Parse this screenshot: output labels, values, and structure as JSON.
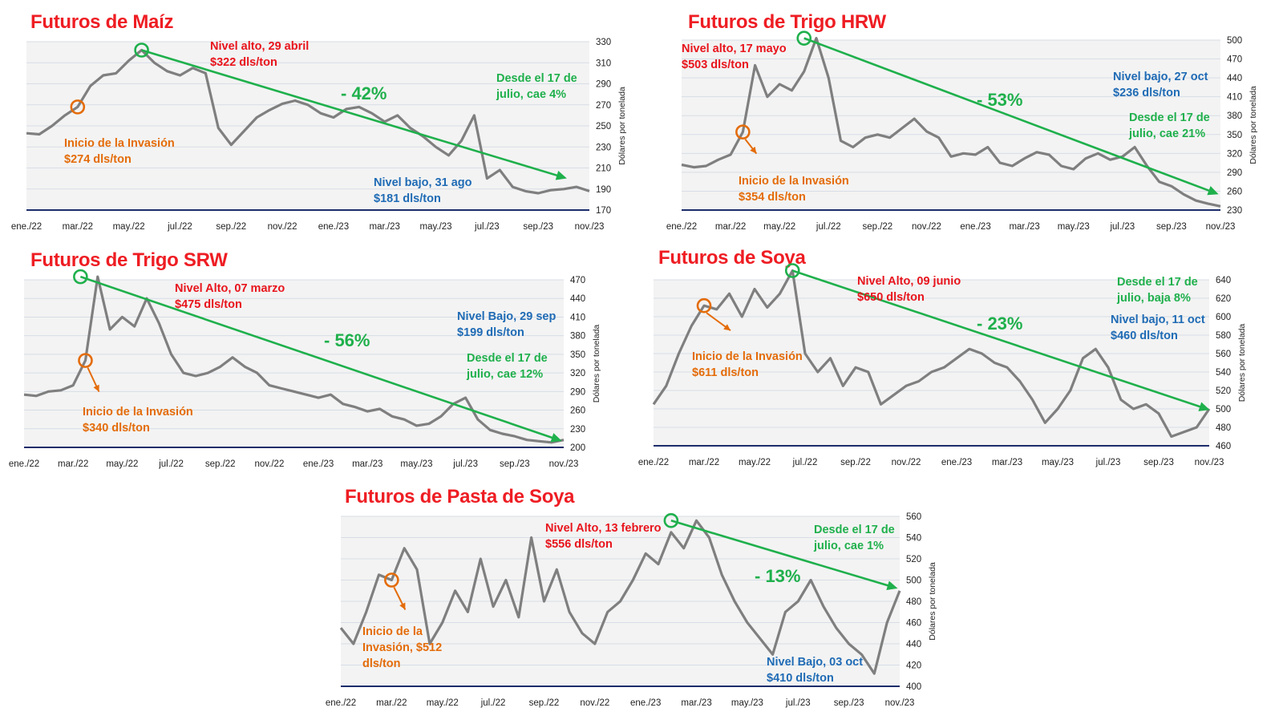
{
  "chart_data": [
    {
      "id": "maiz",
      "type": "line",
      "title": "Futuros de Maíz",
      "ylabel": "Dólares por tonelada",
      "ylim": [
        170,
        330
      ],
      "yticks": [
        170,
        190,
        210,
        230,
        250,
        270,
        290,
        310,
        330
      ],
      "xticks": [
        "ene./22",
        "mar./22",
        "may./22",
        "jul./22",
        "sep./22",
        "nov./22",
        "ene./23",
        "mar./23",
        "may./23",
        "jul./23",
        "sep./23",
        "nov./23"
      ],
      "grid": true,
      "series": [
        {
          "x": [
            0,
            0.5,
            1,
            1.5,
            2,
            2.5,
            3,
            3.5,
            4,
            4.5,
            5,
            5.5,
            6,
            6.5,
            7,
            7.5,
            8,
            8.5,
            9,
            9.5,
            10,
            10.5,
            11,
            11.5,
            12,
            12.5,
            13,
            13.5,
            14,
            14.5,
            15,
            15.5,
            16,
            16.5,
            17,
            17.5,
            18,
            18.5,
            19,
            19.5,
            20,
            20.5,
            21,
            21.5,
            22
          ],
          "values": [
            243,
            242,
            250,
            260,
            268,
            288,
            298,
            300,
            312,
            322,
            310,
            302,
            298,
            305,
            300,
            248,
            232,
            245,
            258,
            265,
            271,
            274,
            270,
            262,
            258,
            266,
            268,
            262,
            254,
            260,
            248,
            240,
            230,
            222,
            236,
            260,
            200,
            208,
            192,
            188,
            186,
            189,
            190,
            192,
            188
          ]
        }
      ],
      "trend": [
        [
          4.5,
          322
        ],
        [
          21,
          201
        ]
      ],
      "annotations": [
        {
          "text": "Nivel alto, 29 abril",
          "text2": "$322 dls/ton",
          "color": "red"
        },
        {
          "text": "Inicio de la Invasión",
          "text2": "$274 dls/ton",
          "color": "orange"
        },
        {
          "text": "Nivel bajo, 31 ago",
          "text2": "$181 dls/ton",
          "color": "blue"
        },
        {
          "text": "Desde el 17 de",
          "text2": "julio, cae 4%",
          "color": "green"
        },
        {
          "text": "- 42%",
          "color": "green"
        }
      ]
    },
    {
      "id": "hrw",
      "type": "line",
      "title": "Futuros de Trigo HRW",
      "ylabel": "Dólares por tonelada",
      "ylim": [
        230,
        500
      ],
      "yticks": [
        230,
        260,
        290,
        320,
        350,
        380,
        410,
        440,
        470,
        500
      ],
      "xticks": [
        "ene./22",
        "mar./22",
        "may./22",
        "jul./22",
        "sep./22",
        "nov./22",
        "ene./23",
        "mar./23",
        "may./23",
        "jul./23",
        "sep./23",
        "nov./23"
      ],
      "grid": true,
      "series": [
        {
          "x": [
            0,
            0.5,
            1,
            1.5,
            2,
            2.5,
            3,
            3.5,
            4,
            4.5,
            5,
            5.5,
            6,
            6.5,
            7,
            7.5,
            8,
            8.5,
            9,
            9.5,
            10,
            10.5,
            11,
            11.5,
            12,
            12.5,
            13,
            13.5,
            14,
            14.5,
            15,
            15.5,
            16,
            16.5,
            17,
            17.5,
            18,
            18.5,
            19,
            19.5,
            20,
            20.5,
            21,
            21.5,
            22
          ],
          "values": [
            302,
            298,
            300,
            310,
            318,
            354,
            460,
            410,
            430,
            420,
            450,
            503,
            440,
            340,
            330,
            345,
            350,
            345,
            360,
            375,
            355,
            345,
            315,
            320,
            318,
            330,
            305,
            300,
            312,
            322,
            318,
            300,
            295,
            312,
            320,
            310,
            315,
            330,
            300,
            275,
            268,
            255,
            245,
            240,
            236
          ]
        }
      ],
      "trend": [
        [
          5,
          503
        ],
        [
          21.8,
          257
        ]
      ],
      "annotations": [
        {
          "text": "Nivel alto, 17 mayo",
          "text2": "$503 dls/ton",
          "color": "red"
        },
        {
          "text": "Inicio de la Invasión",
          "text2": "$354 dls/ton",
          "color": "orange"
        },
        {
          "text": "Nivel bajo, 27 oct",
          "text2": "$236 dls/ton",
          "color": "blue"
        },
        {
          "text": "Desde el 17 de",
          "text2": "julio, cae 21%",
          "color": "green"
        },
        {
          "text": "- 53%",
          "color": "green"
        }
      ]
    },
    {
      "id": "srw",
      "type": "line",
      "title": "Futuros de Trigo SRW",
      "ylabel": "Dólares por tonelada",
      "ylim": [
        200,
        470
      ],
      "yticks": [
        200,
        230,
        260,
        290,
        320,
        350,
        380,
        410,
        440,
        470
      ],
      "xticks": [
        "ene./22",
        "mar./22",
        "may./22",
        "jul./22",
        "sep./22",
        "nov./22",
        "ene./23",
        "mar./23",
        "may./23",
        "jul./23",
        "sep./23",
        "nov./23"
      ],
      "grid": true,
      "series": [
        {
          "x": [
            0,
            0.5,
            1,
            1.5,
            2,
            2.5,
            3,
            3.5,
            4,
            4.5,
            5,
            5.5,
            6,
            6.5,
            7,
            7.5,
            8,
            8.5,
            9,
            9.5,
            10,
            10.5,
            11,
            11.5,
            12,
            12.5,
            13,
            13.5,
            14,
            14.5,
            15,
            15.5,
            16,
            16.5,
            17,
            17.5,
            18,
            18.5,
            19,
            19.5,
            20,
            20.5,
            21,
            21.5,
            22
          ],
          "values": [
            285,
            283,
            290,
            292,
            300,
            340,
            475,
            390,
            410,
            395,
            440,
            400,
            350,
            320,
            315,
            320,
            330,
            345,
            330,
            320,
            300,
            295,
            290,
            285,
            280,
            285,
            270,
            265,
            258,
            262,
            250,
            245,
            235,
            238,
            250,
            270,
            280,
            245,
            228,
            222,
            218,
            212,
            210,
            208,
            212
          ]
        }
      ],
      "trend": [
        [
          2.3,
          475
        ],
        [
          21.8,
          212
        ]
      ],
      "annotations": [
        {
          "text": "Nivel Alto, 07 marzo",
          "text2": "$475 dls/ton",
          "color": "red"
        },
        {
          "text": "Inicio de la Invasión",
          "text2": "$340 dls/ton",
          "color": "orange"
        },
        {
          "text": "Nivel Bajo, 29 sep",
          "text2": "$199 dls/ton",
          "color": "blue"
        },
        {
          "text": "Desde el 17 de",
          "text2": "julio, cae 12%",
          "color": "green"
        },
        {
          "text": "- 56%",
          "color": "green"
        }
      ]
    },
    {
      "id": "soya",
      "type": "line",
      "title": "Futuros de Soya",
      "ylabel": "Dólares por tonelada",
      "ylim": [
        460,
        640
      ],
      "yticks": [
        460,
        480,
        500,
        520,
        540,
        560,
        580,
        600,
        620,
        640
      ],
      "xticks": [
        "ene./22",
        "mar./22",
        "may./22",
        "jul./22",
        "sep./22",
        "nov./22",
        "ene./23",
        "mar./23",
        "may./23",
        "jul./23",
        "sep./23",
        "nov./23"
      ],
      "grid": true,
      "series": [
        {
          "x": [
            0,
            0.5,
            1,
            1.5,
            2,
            2.5,
            3,
            3.5,
            4,
            4.5,
            5,
            5.5,
            6,
            6.5,
            7,
            7.5,
            8,
            8.5,
            9,
            9.5,
            10,
            10.5,
            11,
            11.5,
            12,
            12.5,
            13,
            13.5,
            14,
            14.5,
            15,
            15.5,
            16,
            16.5,
            17,
            17.5,
            18,
            18.5,
            19,
            19.5,
            20,
            20.5,
            21,
            21.5,
            22
          ],
          "values": [
            505,
            525,
            560,
            590,
            612,
            608,
            625,
            600,
            630,
            610,
            625,
            650,
            560,
            540,
            555,
            525,
            545,
            540,
            505,
            515,
            525,
            530,
            540,
            545,
            555,
            565,
            560,
            550,
            545,
            530,
            510,
            485,
            500,
            520,
            555,
            565,
            545,
            510,
            500,
            505,
            495,
            470,
            475,
            480,
            500
          ]
        }
      ],
      "trend": [
        [
          5.5,
          650
        ],
        [
          21.9,
          500
        ]
      ],
      "annotations": [
        {
          "text": "Nivel Alto, 09 junio",
          "text2": "$650 dls/ton",
          "color": "red"
        },
        {
          "text": "Inicio de la Invasión",
          "text2": "$611 dls/ton",
          "color": "orange"
        },
        {
          "text": "Nivel bajo, 11 oct",
          "text2": "$460 dls/ton",
          "color": "blue"
        },
        {
          "text": "Desde el 17 de",
          "text2": "julio, baja 8%",
          "color": "green"
        },
        {
          "text": "- 23%",
          "color": "green"
        }
      ]
    },
    {
      "id": "pasta",
      "type": "line",
      "title": "Futuros de Pasta de Soya",
      "ylabel": "Dólares por tonelada",
      "ylim": [
        400,
        560
      ],
      "yticks": [
        400,
        420,
        440,
        460,
        480,
        500,
        520,
        540,
        560
      ],
      "xticks": [
        "ene./22",
        "mar./22",
        "may./22",
        "jul./22",
        "sep./22",
        "nov./22",
        "ene./23",
        "mar./23",
        "may./23",
        "jul./23",
        "sep./23",
        "nov./23"
      ],
      "grid": true,
      "series": [
        {
          "x": [
            0,
            0.5,
            1,
            1.5,
            2,
            2.5,
            3,
            3.5,
            4,
            4.5,
            5,
            5.5,
            6,
            6.5,
            7,
            7.5,
            8,
            8.5,
            9,
            9.5,
            10,
            10.5,
            11,
            11.5,
            12,
            12.5,
            13,
            13.5,
            14,
            14.5,
            15,
            15.5,
            16,
            16.5,
            17,
            17.5,
            18,
            18.5,
            19,
            19.5,
            20,
            20.5,
            21,
            21.5,
            22
          ],
          "values": [
            455,
            440,
            470,
            505,
            500,
            530,
            510,
            440,
            460,
            490,
            470,
            520,
            475,
            500,
            465,
            540,
            480,
            510,
            470,
            450,
            440,
            470,
            480,
            500,
            525,
            515,
            545,
            530,
            556,
            540,
            505,
            480,
            460,
            445,
            430,
            470,
            480,
            500,
            475,
            455,
            440,
            430,
            412,
            460,
            490
          ]
        }
      ],
      "trend": [
        [
          13,
          556
        ],
        [
          21.8,
          493
        ]
      ],
      "annotations": [
        {
          "text": "Nivel Alto, 13 febrero",
          "text2": "$556 dls/ton",
          "color": "red"
        },
        {
          "text": "Inicio de la",
          "text2": "Invasión, $512",
          "text3": "dls/ton",
          "color": "orange"
        },
        {
          "text": "Nivel Bajo, 03 oct",
          "text2": "$410 dls/ton",
          "color": "blue"
        },
        {
          "text": "Desde el 17 de",
          "text2": "julio, cae 1%",
          "color": "green"
        },
        {
          "text": "- 13%",
          "color": "green"
        }
      ]
    }
  ]
}
